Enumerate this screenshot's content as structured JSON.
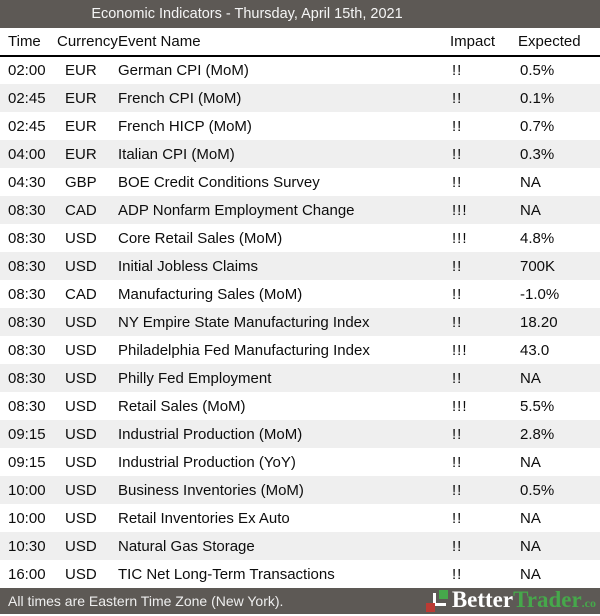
{
  "header": {
    "title": "Economic Indicators - Thursday, April 15th, 2021"
  },
  "table": {
    "columns": [
      "Time",
      "Currency",
      "Event Name",
      "Impact",
      "Expected"
    ],
    "rows": [
      {
        "time": "02:00",
        "currency": "EUR",
        "event": "German CPI (MoM)",
        "impact": "!!",
        "expected": "0.5%"
      },
      {
        "time": "02:45",
        "currency": "EUR",
        "event": "French CPI (MoM)",
        "impact": "!!",
        "expected": "0.1%"
      },
      {
        "time": "02:45",
        "currency": "EUR",
        "event": "French HICP (MoM)",
        "impact": "!!",
        "expected": "0.7%"
      },
      {
        "time": "04:00",
        "currency": "EUR",
        "event": "Italian CPI (MoM)",
        "impact": "!!",
        "expected": "0.3%"
      },
      {
        "time": "04:30",
        "currency": "GBP",
        "event": "BOE Credit Conditions Survey",
        "impact": "!!",
        "expected": "NA"
      },
      {
        "time": "08:30",
        "currency": "CAD",
        "event": "ADP Nonfarm Employment Change",
        "impact": "!!!",
        "expected": "NA"
      },
      {
        "time": "08:30",
        "currency": "USD",
        "event": "Core Retail Sales (MoM)",
        "impact": "!!!",
        "expected": "4.8%"
      },
      {
        "time": "08:30",
        "currency": "USD",
        "event": "Initial Jobless Claims",
        "impact": "!!",
        "expected": "700K"
      },
      {
        "time": "08:30",
        "currency": "CAD",
        "event": "Manufacturing Sales (MoM)",
        "impact": "!!",
        "expected": "-1.0%"
      },
      {
        "time": "08:30",
        "currency": "USD",
        "event": "NY Empire State Manufacturing Index",
        "impact": "!!",
        "expected": "18.20"
      },
      {
        "time": "08:30",
        "currency": "USD",
        "event": "Philadelphia Fed Manufacturing Index",
        "impact": "!!!",
        "expected": "43.0"
      },
      {
        "time": "08:30",
        "currency": "USD",
        "event": "Philly Fed Employment",
        "impact": "!!",
        "expected": "NA"
      },
      {
        "time": "08:30",
        "currency": "USD",
        "event": "Retail Sales (MoM)",
        "impact": "!!!",
        "expected": "5.5%"
      },
      {
        "time": "09:15",
        "currency": "USD",
        "event": "Industrial Production (MoM)",
        "impact": "!!",
        "expected": "2.8%"
      },
      {
        "time": "09:15",
        "currency": "USD",
        "event": "Industrial Production (YoY)",
        "impact": "!!",
        "expected": "NA"
      },
      {
        "time": "10:00",
        "currency": "USD",
        "event": "Business Inventories (MoM)",
        "impact": "!!",
        "expected": "0.5%"
      },
      {
        "time": "10:00",
        "currency": "USD",
        "event": "Retail Inventories Ex Auto",
        "impact": "!!",
        "expected": "NA"
      },
      {
        "time": "10:30",
        "currency": "USD",
        "event": "Natural Gas Storage",
        "impact": "!!",
        "expected": "NA"
      },
      {
        "time": "16:00",
        "currency": "USD",
        "event": "TIC Net Long-Term Transactions",
        "impact": "!!",
        "expected": "NA"
      }
    ]
  },
  "footer": {
    "note": "All times are Eastern Time Zone (New York).",
    "brand": {
      "part1": "Better",
      "part2": "Trader",
      "suffix": ".co",
      "icon": "candlestick-chart-icon"
    }
  },
  "colors": {
    "bar": "#5d5955",
    "stripe": "#efefef",
    "brand_green": "#46a84b",
    "brand_red": "#bb3a33",
    "text": "#0d0d0d"
  }
}
